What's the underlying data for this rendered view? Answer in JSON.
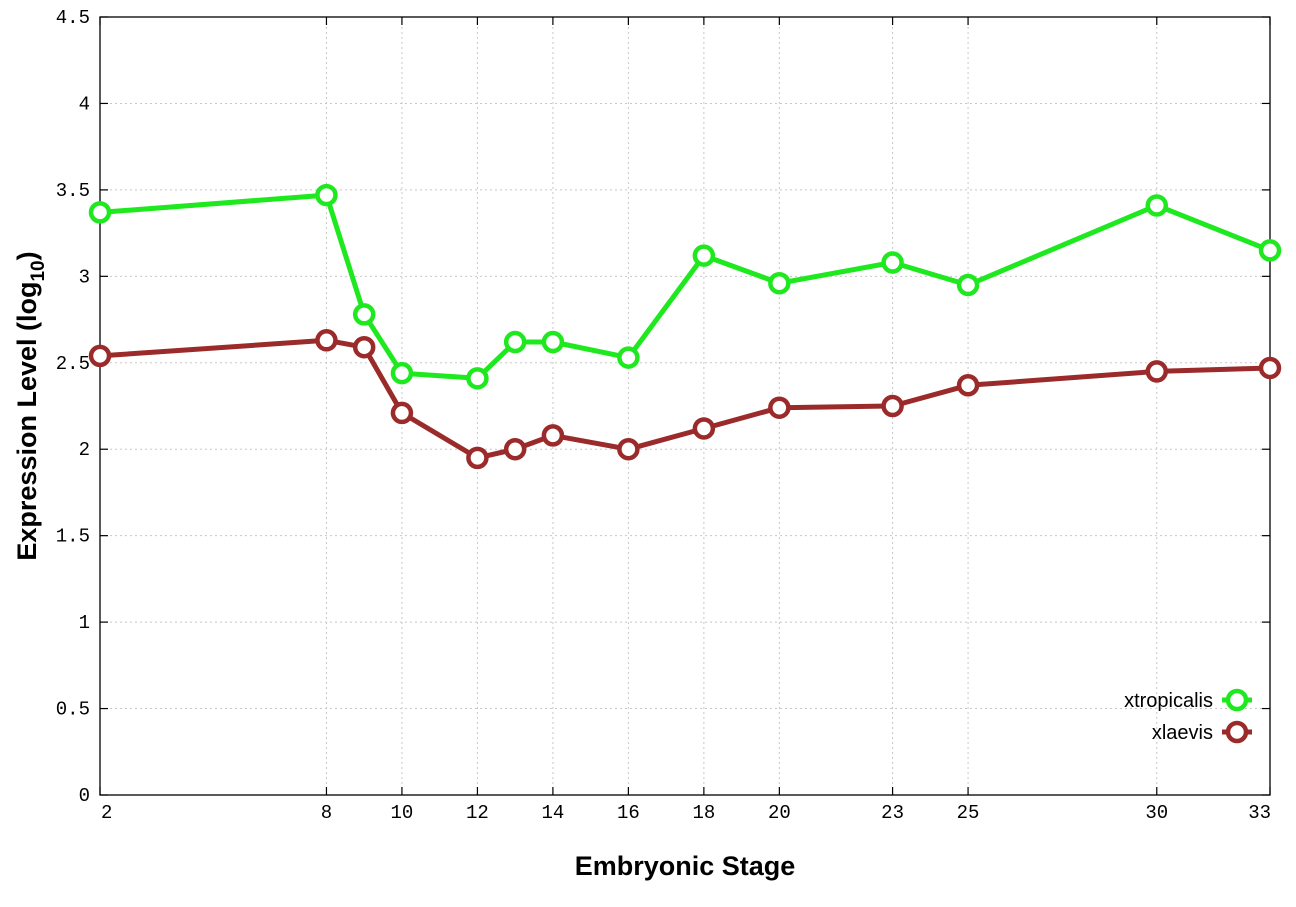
{
  "chart_data": {
    "type": "line",
    "xlabel": "Embryonic Stage",
    "ylabel_main": "Expression Level (log",
    "ylabel_sub": "10",
    "ylabel_close": ")",
    "x_ticks": [
      2,
      8,
      10,
      12,
      14,
      16,
      18,
      20,
      23,
      25,
      30,
      33
    ],
    "y_ticks": [
      0,
      0.5,
      1,
      1.5,
      2,
      2.5,
      3,
      3.5,
      4,
      4.5
    ],
    "y_tick_labels": [
      "0",
      "0.5",
      "1",
      "1.5",
      "2",
      "2.5",
      "3",
      "3.5",
      "4",
      "4.5"
    ],
    "xlim": [
      2,
      33
    ],
    "ylim": [
      0,
      4.5
    ],
    "grid": true,
    "legend_position": "bottom-right",
    "x": [
      2,
      8,
      9,
      10,
      12,
      13,
      14,
      16,
      18,
      20,
      23,
      25,
      30,
      33
    ],
    "series": [
      {
        "name": "xtropicalis",
        "color": "#1ee81e",
        "values": [
          3.37,
          3.47,
          2.78,
          2.44,
          2.41,
          2.62,
          2.62,
          2.53,
          3.12,
          2.96,
          3.08,
          2.95,
          3.41,
          3.15
        ]
      },
      {
        "name": "xlaevis",
        "color": "#9b2a2a",
        "values": [
          2.54,
          2.63,
          2.59,
          2.21,
          1.95,
          2.0,
          2.08,
          2.0,
          2.12,
          2.24,
          2.25,
          2.37,
          2.45,
          2.47
        ]
      }
    ]
  }
}
